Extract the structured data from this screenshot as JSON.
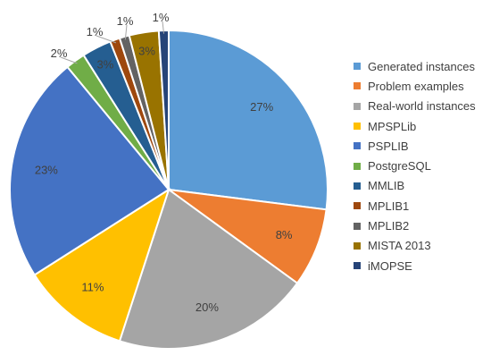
{
  "chart_data": {
    "type": "pie",
    "legend_position": "right",
    "slices": [
      {
        "name": "Generated  instances",
        "value": 27,
        "label": "27%",
        "color": "#5b9bd5"
      },
      {
        "name": "Problem examples",
        "value": 8,
        "label": "8%",
        "color": "#ed7d31"
      },
      {
        "name": "Real-world instances",
        "value": 20,
        "label": "20%",
        "color": "#a5a5a5"
      },
      {
        "name": "MPSPLib",
        "value": 11,
        "label": "11%",
        "color": "#ffc000"
      },
      {
        "name": "PSPLIB",
        "value": 23,
        "label": "23%",
        "color": "#4472c4"
      },
      {
        "name": "PostgreSQL",
        "value": 2,
        "label": "2%",
        "color": "#70ad47"
      },
      {
        "name": "MMLIB",
        "value": 3,
        "label": "3%",
        "color": "#255e91"
      },
      {
        "name": "MPLIB1",
        "value": 1,
        "label": "1%",
        "color": "#9e480e"
      },
      {
        "name": "MPLIB2",
        "value": 1,
        "label": "1%",
        "color": "#636363"
      },
      {
        "name": "MISTA 2013",
        "value": 3,
        "label": "3%",
        "color": "#997300"
      },
      {
        "name": "iMOPSE",
        "value": 1,
        "label": "1%",
        "color": "#264478"
      }
    ]
  }
}
